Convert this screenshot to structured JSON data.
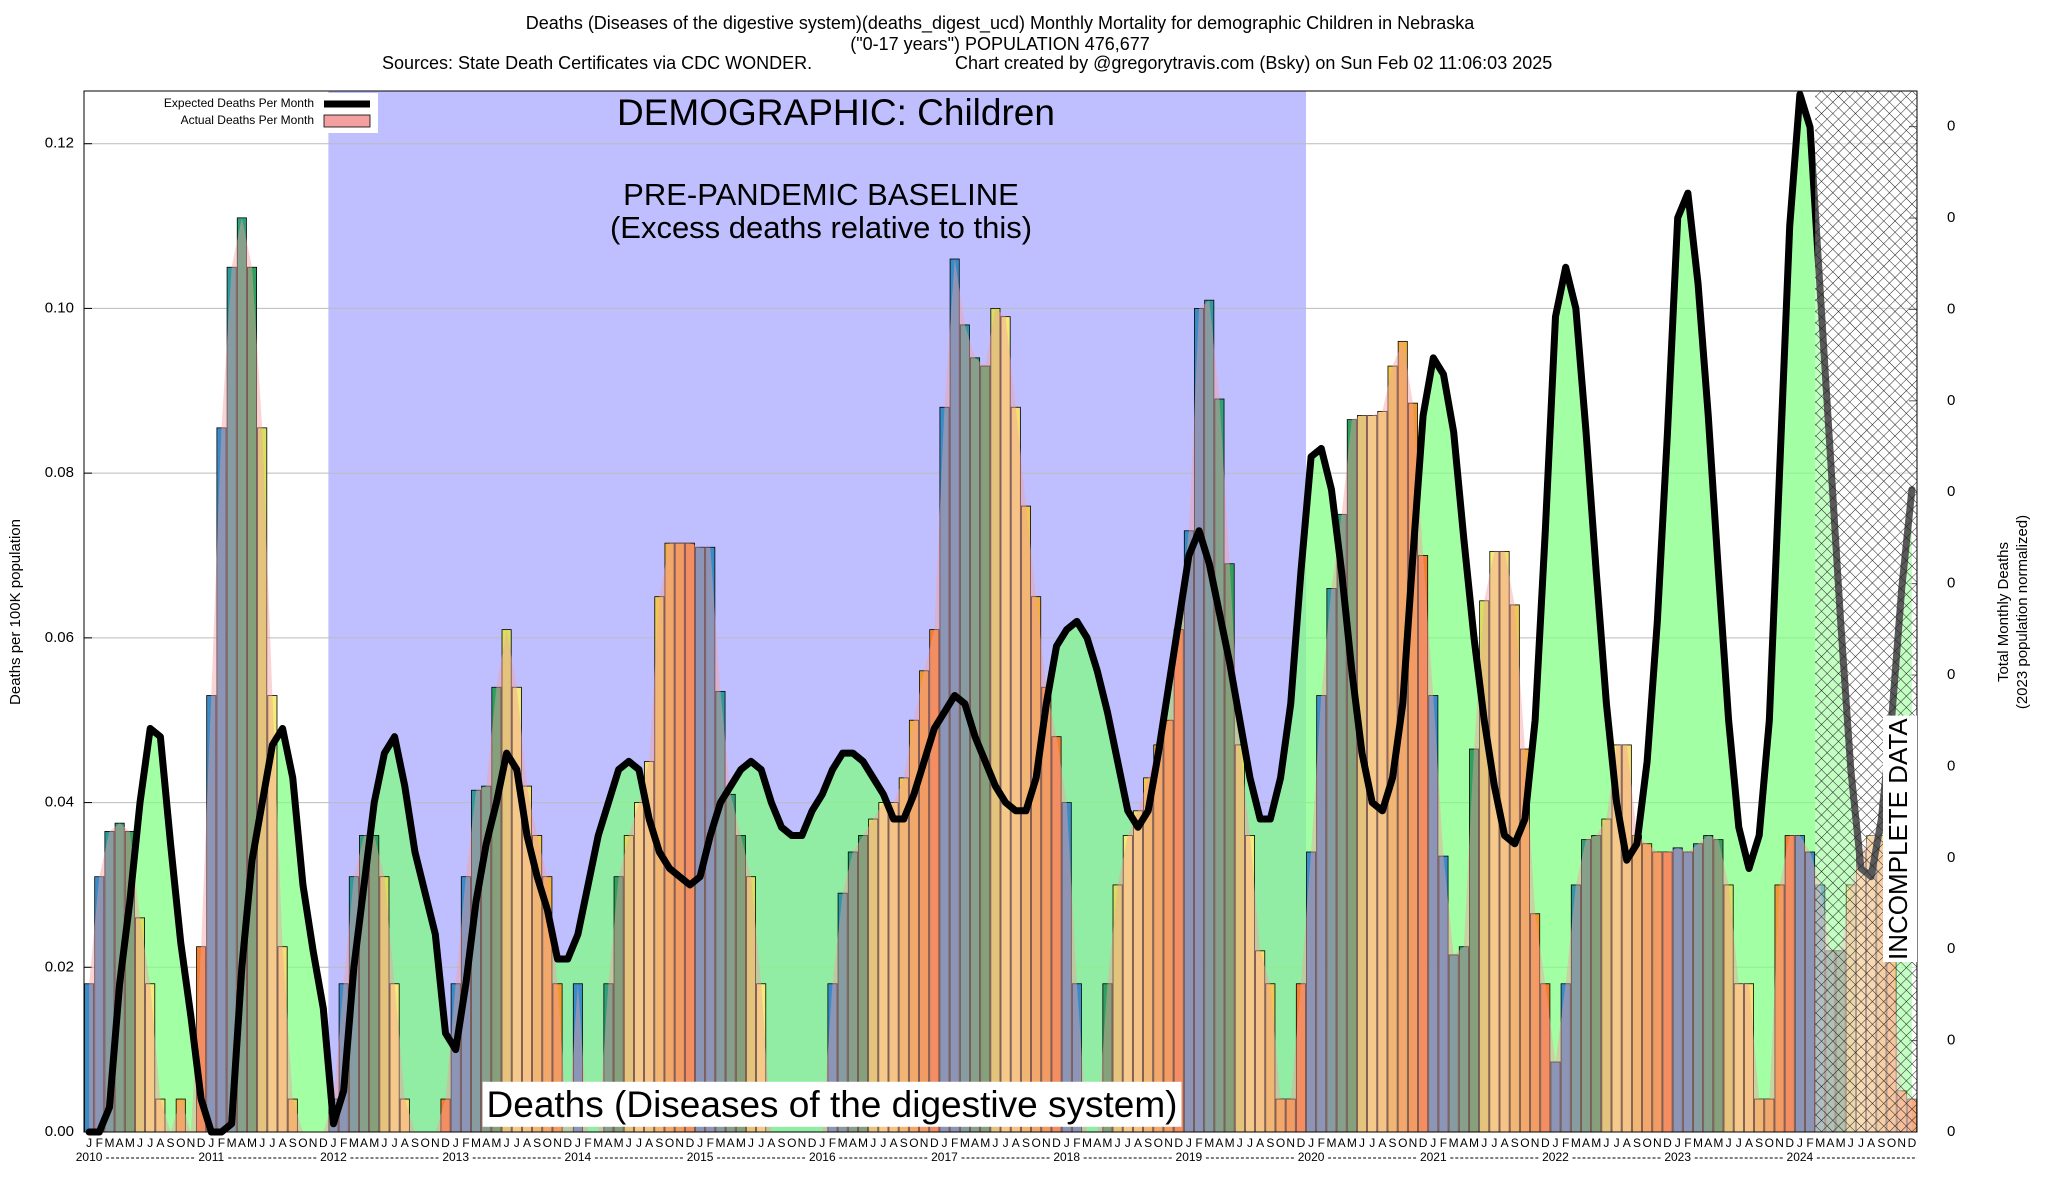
{
  "chart_data": {
    "type": "bar",
    "title": "Deaths (Diseases of the digestive system)(deaths_digest_ucd) Monthly Mortality for demographic Children in Nebraska",
    "subtitle": "(\"0-17 years\") POPULATION 476,677",
    "sources": "Sources: State Death Certificates via CDC WONDER.",
    "credit": "Chart created by @gregorytravis.com (Bsky) on Sun Feb 02 11:06:03 2025",
    "y_label": "Deaths per 100K population",
    "y2_label": [
      "Total Monthly Deaths",
      "(2023 population normalized)"
    ],
    "annotations": [
      "DEMOGRAPHIC: Children",
      "PRE-PANDEMIC BASELINE",
      "(Excess deaths relative to this)",
      "Deaths (Diseases of the digestive system)",
      "INCOMPLETE DATA"
    ],
    "years": [
      "2010",
      "2011",
      "2012",
      "2013",
      "2014",
      "2015",
      "2016",
      "2017",
      "2018",
      "2019",
      "2020",
      "2021",
      "2022",
      "2023",
      "2024"
    ],
    "categories": [
      "J",
      "F",
      "M",
      "A",
      "M",
      "J",
      "J",
      "A",
      "S",
      "O",
      "N",
      "D",
      "J",
      "F",
      "M",
      "A",
      "M",
      "J",
      "J",
      "A",
      "S",
      "O",
      "N",
      "D",
      "J",
      "F",
      "M",
      "A",
      "M",
      "J",
      "J",
      "A",
      "S",
      "O",
      "N",
      "D",
      "J",
      "F",
      "M",
      "A",
      "M",
      "J",
      "J",
      "A",
      "S",
      "O",
      "N",
      "D",
      "J",
      "F",
      "M",
      "A",
      "M",
      "J",
      "J",
      "A",
      "S",
      "O",
      "N",
      "D",
      "J",
      "F",
      "M",
      "A",
      "M",
      "J",
      "J",
      "A",
      "S",
      "O",
      "N",
      "D",
      "J",
      "F",
      "M",
      "A",
      "M",
      "J",
      "J",
      "A",
      "S",
      "O",
      "N",
      "D",
      "J",
      "F",
      "M",
      "A",
      "M",
      "J",
      "J",
      "A",
      "S",
      "O",
      "N",
      "D",
      "J",
      "F",
      "M",
      "A",
      "M",
      "J",
      "J",
      "A",
      "S",
      "O",
      "N",
      "D",
      "J",
      "F",
      "M",
      "A",
      "M",
      "J",
      "J",
      "A",
      "S",
      "O",
      "N",
      "D",
      "J",
      "F",
      "M",
      "A",
      "M",
      "J",
      "J",
      "A",
      "S",
      "O",
      "N",
      "D",
      "J",
      "F",
      "M",
      "A",
      "M",
      "J",
      "J",
      "A",
      "S",
      "O",
      "N",
      "D",
      "J",
      "F",
      "M",
      "A",
      "M",
      "J",
      "J",
      "A",
      "S",
      "O",
      "N",
      "D",
      "J",
      "F",
      "M",
      "A",
      "M",
      "J",
      "J",
      "A",
      "S",
      "O",
      "N",
      "D",
      "J",
      "F",
      "M",
      "A",
      "M",
      "J",
      "J",
      "A",
      "S",
      "O",
      "N",
      "D"
    ],
    "series": [
      {
        "name": "Expected Deaths Per Month",
        "color": "#000000",
        "values": [
          0,
          0,
          0.003,
          0.018,
          0.028,
          0.04,
          0.049,
          0.048,
          0.035,
          0.023,
          0.014,
          0.004,
          0,
          0,
          0.001,
          0.02,
          0.033,
          0.04,
          0.047,
          0.049,
          0.043,
          0.03,
          0.022,
          0.015,
          0.001,
          0.005,
          0.02,
          0.03,
          0.04,
          0.046,
          0.048,
          0.042,
          0.034,
          0.029,
          0.024,
          0.012,
          0.01,
          0.018,
          0.028,
          0.035,
          0.04,
          0.046,
          0.044,
          0.036,
          0.031,
          0.027,
          0.021,
          0.021,
          0.024,
          0.03,
          0.036,
          0.04,
          0.044,
          0.045,
          0.044,
          0.038,
          0.034,
          0.032,
          0.031,
          0.03,
          0.031,
          0.036,
          0.04,
          0.042,
          0.044,
          0.045,
          0.044,
          0.04,
          0.037,
          0.036,
          0.036,
          0.039,
          0.041,
          0.044,
          0.046,
          0.046,
          0.045,
          0.043,
          0.041,
          0.038,
          0.038,
          0.041,
          0.045,
          0.049,
          0.051,
          0.053,
          0.052,
          0.048,
          0.045,
          0.042,
          0.04,
          0.039,
          0.039,
          0.043,
          0.052,
          0.059,
          0.061,
          0.062,
          0.06,
          0.056,
          0.051,
          0.045,
          0.039,
          0.037,
          0.039,
          0.046,
          0.054,
          0.062,
          0.07,
          0.073,
          0.069,
          0.063,
          0.057,
          0.05,
          0.043,
          0.038,
          0.038,
          0.043,
          0.052,
          0.068,
          0.082,
          0.083,
          0.078,
          0.068,
          0.056,
          0.046,
          0.04,
          0.039,
          0.043,
          0.052,
          0.07,
          0.087,
          0.094,
          0.092,
          0.085,
          0.072,
          0.06,
          0.05,
          0.042,
          0.036,
          0.035,
          0.038,
          0.05,
          0.073,
          0.099,
          0.105,
          0.1,
          0.085,
          0.068,
          0.052,
          0.04,
          0.033,
          0.035,
          0.045,
          0.062,
          0.085,
          0.111,
          0.114,
          0.103,
          0.087,
          0.068,
          0.05,
          0.037,
          0.032,
          0.036,
          0.05,
          0.08,
          0.11,
          0.126,
          0.122,
          0.102,
          0.082,
          0.062,
          0.044,
          0.032,
          0.031,
          0.038,
          0.05,
          0.066,
          0.078
        ]
      },
      {
        "name": "Actual Deaths Per Month",
        "color": "#f4a0a0",
        "values": [
          0.018,
          0.031,
          0.0365,
          0.0375,
          0.0365,
          0.026,
          0.018,
          0.004,
          0,
          0.004,
          0,
          0.0225,
          0.053,
          0.0855,
          0.105,
          0.111,
          0.105,
          0.0855,
          0.053,
          0.0225,
          0.004,
          0,
          0,
          0,
          0.004,
          0.018,
          0.031,
          0.036,
          0.036,
          0.031,
          0.018,
          0.004,
          0,
          0,
          0,
          0.004,
          0.018,
          0.031,
          0.0415,
          0.042,
          0.054,
          0.061,
          0.054,
          0.042,
          0.036,
          0.031,
          0.018,
          0,
          0.018,
          0,
          0,
          0.018,
          0.031,
          0.036,
          0.04,
          0.045,
          0.065,
          0.0715,
          0.0715,
          0.0715,
          0.071,
          0.071,
          0.0535,
          0.041,
          0.036,
          0.031,
          0.018,
          0,
          0,
          0,
          0,
          0,
          0,
          0.018,
          0.029,
          0.034,
          0.036,
          0.038,
          0.04,
          0.04,
          0.043,
          0.05,
          0.056,
          0.061,
          0.088,
          0.106,
          0.098,
          0.094,
          0.093,
          0.1,
          0.099,
          0.088,
          0.076,
          0.065,
          0.054,
          0.048,
          0.04,
          0.018,
          0,
          0,
          0.018,
          0.03,
          0.036,
          0.039,
          0.043,
          0.047,
          0.05,
          0.061,
          0.073,
          0.1,
          0.101,
          0.089,
          0.069,
          0.047,
          0.036,
          0.022,
          0.018,
          0.004,
          0.004,
          0.018,
          0.034,
          0.053,
          0.066,
          0.075,
          0.0865,
          0.087,
          0.087,
          0.0875,
          0.093,
          0.096,
          0.0885,
          0.07,
          0.053,
          0.0335,
          0.0215,
          0.0225,
          0.0465,
          0.0645,
          0.0705,
          0.0705,
          0.064,
          0.0465,
          0.0265,
          0.018,
          0.0085,
          0.018,
          0.03,
          0.0355,
          0.036,
          0.038,
          0.047,
          0.047,
          0.036,
          0.035,
          0.034,
          0.034,
          0.0345,
          0.034,
          0.035,
          0.036,
          0.0355,
          0.03,
          0.018,
          0.018,
          0.004,
          0.004,
          0.03,
          0.036,
          0.036,
          0.034,
          0.03,
          0.022,
          0.022,
          0.03,
          0.034,
          0.036,
          0.036,
          0.022,
          0.005,
          0.004
        ]
      }
    ],
    "month_colors": [
      "#3a8cc8",
      "#3a8cc8",
      "#2e9aa0",
      "#2fa07a",
      "#2fa060",
      "#d8e060",
      "#f4ec78",
      "#f4e070",
      "#f0c850",
      "#f0b040",
      "#f09830",
      "#f08030"
    ],
    "expected_fill": "#80ff80",
    "baseline_color": "#bfbfff",
    "ylim": [
      0,
      0.1264
    ],
    "yticks": [
      {
        "value": 0,
        "label": "0.00"
      },
      0.02,
      0.04,
      0.06,
      0.08,
      {
        "value": 0.1,
        "label": "0.10"
      },
      0.12
    ],
    "y2lim": [
      0,
      11.39
    ],
    "y2ticks": [
      0,
      {
        "value": 1,
        "label": "0"
      },
      {
        "value": 2,
        "label": "0"
      },
      {
        "value": 3,
        "label": "0"
      },
      {
        "value": 4,
        "label": "0"
      },
      {
        "value": 5,
        "label": "0"
      },
      {
        "value": 6,
        "label": "0"
      },
      {
        "value": 7,
        "label": "0"
      },
      {
        "value": 8,
        "label": "0"
      },
      {
        "value": 9,
        "label": "0"
      },
      {
        "value": 10,
        "label": "0"
      },
      {
        "value": 11,
        "label": "0"
      }
    ],
    "grid": true
  }
}
